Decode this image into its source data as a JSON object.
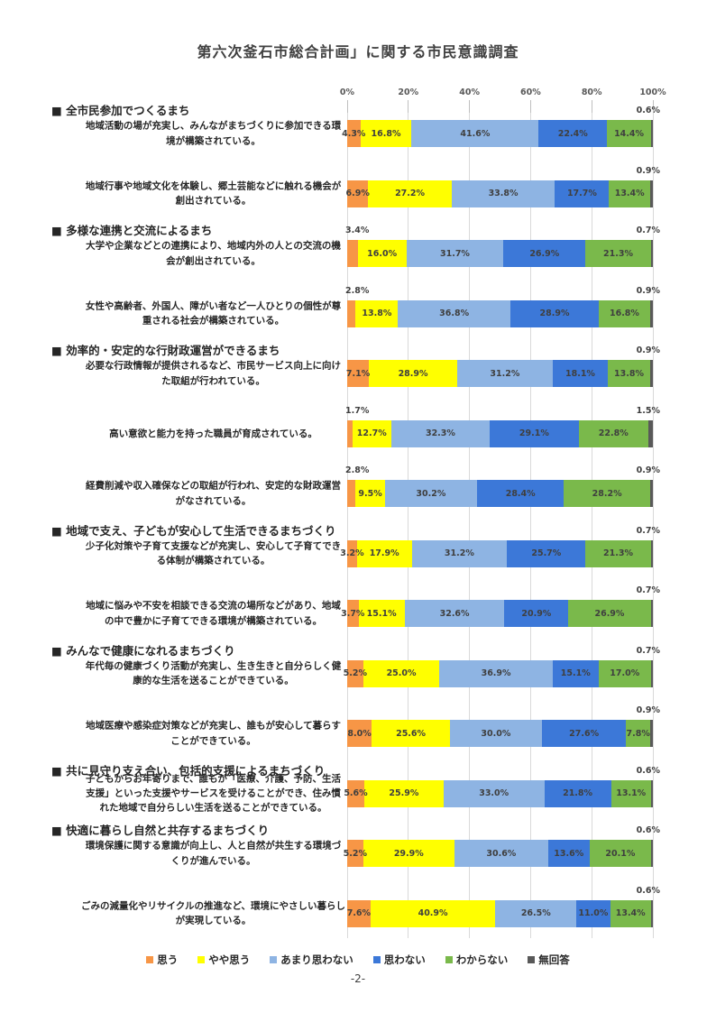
{
  "page": {
    "title": "第六次釜石市総合計画」に関する市民意識調査",
    "page_number": "-2-"
  },
  "chart_data": {
    "type": "bar",
    "variant": "horizontal-stacked-100pct",
    "title": "第六次釜石市総合計画」に関する市民意識調査",
    "xlim": [
      0,
      100
    ],
    "x_ticks": [
      "0%",
      "20%",
      "40%",
      "60%",
      "80%",
      "100%"
    ],
    "grid": true,
    "legend_position": "bottom",
    "series_names": [
      "思う",
      "やや思う",
      "あまり思わない",
      "思わない",
      "わからない",
      "無回答"
    ],
    "series_colors": [
      "#F79646",
      "#FFFF00",
      "#8EB4E3",
      "#3C78D8",
      "#7AB94B",
      "#595959"
    ],
    "rows": [
      {
        "group": "■ 全市民参加でつくるまち",
        "label": "地域活動の場が充実し、みんながまちづくりに参加できる環境が構築されている。",
        "values": [
          4.3,
          16.8,
          41.6,
          22.4,
          14.4,
          0.6
        ],
        "first_value_above": false
      },
      {
        "label": "地域行事や地域文化を体験し、郷土芸能などに触れる機会が創出されている。",
        "values": [
          6.9,
          27.2,
          33.8,
          17.7,
          13.4,
          0.9
        ],
        "first_value_above": false
      },
      {
        "group": "■ 多様な連携と交流によるまち",
        "label": "大学や企業などとの連携により、地域内外の人との交流の機会が創出されている。",
        "values": [
          3.4,
          16.0,
          31.7,
          26.9,
          21.3,
          0.7
        ],
        "first_value_above": true
      },
      {
        "label": "女性や高齢者、外国人、障がい者など一人ひとりの個性が尊重される社会が構築されている。",
        "values": [
          2.8,
          13.8,
          36.8,
          28.9,
          16.8,
          0.9
        ],
        "first_value_above": true
      },
      {
        "group": "■ 効率的・安定的な行財政運営ができるまち",
        "label": "必要な行政情報が提供されるなど、市民サービス向上に向けた取組が行われている。",
        "values": [
          7.1,
          28.9,
          31.2,
          18.1,
          13.8,
          0.9
        ],
        "first_value_above": false
      },
      {
        "label": "高い意欲と能力を持った職員が育成されている。",
        "values": [
          1.7,
          12.7,
          32.3,
          29.1,
          22.8,
          1.5
        ],
        "first_value_above": true
      },
      {
        "label": "経費削減や収入確保などの取組が行われ、安定的な財政運営がなされている。",
        "values": [
          2.8,
          9.5,
          30.2,
          28.4,
          28.2,
          0.9
        ],
        "first_value_above": true
      },
      {
        "group": "■ 地域で支え、子どもが安心して生活できるまちづくり",
        "label": "少子化対策や子育て支援などが充実し、安心して子育てできる体制が構築されている。",
        "values": [
          3.2,
          17.9,
          31.2,
          25.7,
          21.3,
          0.7
        ],
        "first_value_above": false
      },
      {
        "label": "地域に悩みや不安を相談できる交流の場所などがあり、地域の中で豊かに子育てできる環境が構築されている。",
        "values": [
          3.7,
          15.1,
          32.6,
          20.9,
          26.9,
          0.7
        ],
        "first_value_above": false
      },
      {
        "group": "■ みんなで健康になれるまちづくり",
        "label": "年代毎の健康づくり活動が充実し、生き生きと自分らしく健康的な生活を送ることができている。",
        "values": [
          5.2,
          25.0,
          36.9,
          15.1,
          17.0,
          0.7
        ],
        "first_value_above": false
      },
      {
        "label": "地域医療や感染症対策などが充実し、誰もが安心して暮らすことができている。",
        "values": [
          8.0,
          25.6,
          30.0,
          27.6,
          7.8,
          0.9
        ],
        "first_value_above": false
      },
      {
        "group": "■ 共に見守り支え合い、包括的支援によるまちづくり",
        "label": "子どもからお年寄りまで、誰もが「医療、介護、予防、生活支援」といった支援やサービスを受けることができ、住み慣れた地域で自分らしい生活を送ることができている。",
        "values": [
          5.6,
          25.9,
          33.0,
          21.8,
          13.1,
          0.6
        ],
        "first_value_above": false
      },
      {
        "group": "■ 快適に暮らし自然と共存するまちづくり",
        "label": "環境保護に関する意識が向上し、人と自然が共生する環境づくりが進んでいる。",
        "values": [
          5.2,
          29.9,
          30.6,
          13.6,
          20.1,
          0.6
        ],
        "first_value_above": false
      },
      {
        "label": "ごみの減量化やリサイクルの推進など、環境にやさしい暮らしが実現している。",
        "values": [
          7.6,
          40.9,
          26.5,
          11.0,
          13.4,
          0.6
        ],
        "first_value_above": false
      }
    ]
  }
}
